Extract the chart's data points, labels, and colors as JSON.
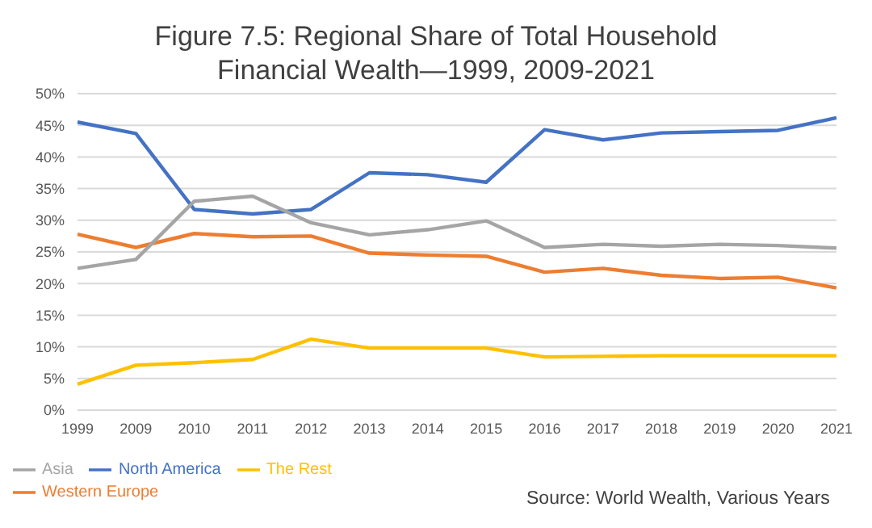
{
  "chart_data": {
    "type": "line",
    "title": "Figure 7.5: Regional Share of Total Household Financial Wealth—1999, 2009-2021",
    "categories": [
      "1999",
      "2009",
      "2010",
      "2011",
      "2012",
      "2013",
      "2014",
      "2015",
      "2016",
      "2017",
      "2018",
      "2019",
      "2020",
      "2021"
    ],
    "series": [
      {
        "name": "North America",
        "color": "#4472c4",
        "values": [
          45.5,
          43.7,
          31.7,
          31,
          31.7,
          37.5,
          37.2,
          36,
          44.3,
          42.7,
          43.8,
          44,
          44.2,
          46.2
        ]
      },
      {
        "name": "Western Europe",
        "color": "#ed7d31",
        "values": [
          27.8,
          25.7,
          27.9,
          27.4,
          27.5,
          24.8,
          24.5,
          24.3,
          21.8,
          22.4,
          21.3,
          20.8,
          21,
          19.3
        ]
      },
      {
        "name": "Asia",
        "color": "#a5a5a5",
        "values": [
          22.4,
          23.8,
          33,
          33.8,
          29.6,
          27.7,
          28.5,
          29.9,
          25.7,
          26.2,
          25.9,
          26.2,
          26,
          25.6
        ]
      },
      {
        "name": "The Rest",
        "color": "#ffc000",
        "values": [
          4.1,
          7.1,
          7.5,
          8,
          11.2,
          9.8,
          9.8,
          9.8,
          8.4,
          8.5,
          8.6,
          8.6,
          8.6,
          8.6
        ]
      }
    ],
    "ylim": [
      0,
      50
    ],
    "yticks": [
      {
        "value": 0,
        "label": "0%"
      },
      {
        "value": 5,
        "label": "5%"
      },
      {
        "value": 10,
        "label": "10%"
      },
      {
        "value": 15,
        "label": "15%"
      },
      {
        "value": 20,
        "label": "20%"
      },
      {
        "value": 25,
        "label": "25%"
      },
      {
        "value": 30,
        "label": "30%"
      },
      {
        "value": 35,
        "label": "35%"
      },
      {
        "value": 40,
        "label": "40%"
      },
      {
        "value": 45,
        "label": "45%"
      },
      {
        "value": 50,
        "label": "50%"
      }
    ],
    "grid": "y",
    "legend": "bottom left",
    "marker": "none",
    "line_style": "solid",
    "annotations": [
      "Source: World Wealth, Various Years"
    ]
  }
}
